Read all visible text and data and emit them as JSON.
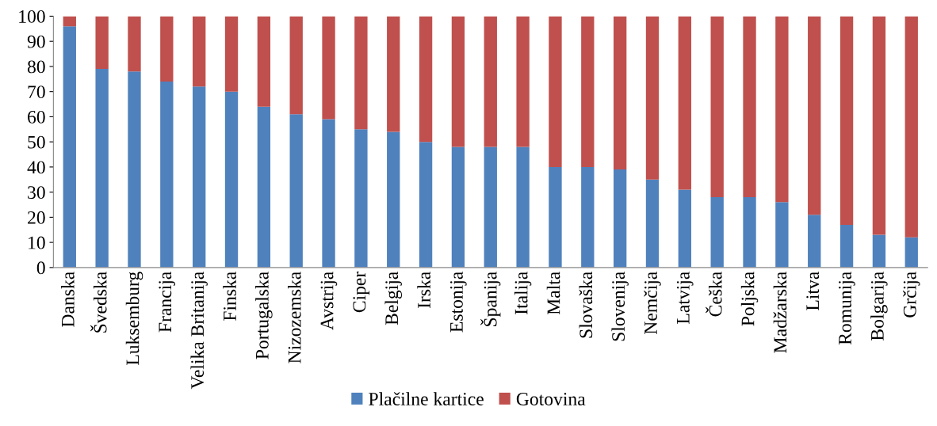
{
  "chart_data": {
    "type": "bar",
    "stacked": true,
    "categories": [
      "Danska",
      "Švedska",
      "Luksemburg",
      "Francija",
      "Velika Britanija",
      "Finska",
      "Portugalska",
      "Nizozemska",
      "Avstrija",
      "Ciper",
      "Belgija",
      "Irska",
      "Estonija",
      "Španija",
      "Italija",
      "Malta",
      "Slovaška",
      "Slovenija",
      "Nemčija",
      "Latvija",
      "Češka",
      "Poljska",
      "Madžarska",
      "Litva",
      "Romunija",
      "Bolgarija",
      "Grčija"
    ],
    "series": [
      {
        "name": "Plačilne kartice",
        "color": "#4f81bd",
        "values": [
          96,
          79,
          78,
          74,
          72,
          70,
          64,
          61,
          59,
          55,
          54,
          50,
          48,
          48,
          48,
          40,
          40,
          39,
          35,
          31,
          28,
          28,
          26,
          21,
          17,
          13,
          12
        ]
      },
      {
        "name": "Gotovina",
        "color": "#c0504d",
        "values": [
          4,
          21,
          22,
          26,
          28,
          30,
          36,
          39,
          41,
          45,
          46,
          50,
          52,
          52,
          52,
          60,
          60,
          61,
          65,
          69,
          72,
          72,
          74,
          79,
          83,
          87,
          88
        ]
      }
    ],
    "ylim": [
      0,
      100
    ],
    "yticks": [
      0,
      10,
      20,
      30,
      40,
      50,
      60,
      70,
      80,
      90,
      100
    ],
    "grid": false,
    "legend": "bottom"
  }
}
